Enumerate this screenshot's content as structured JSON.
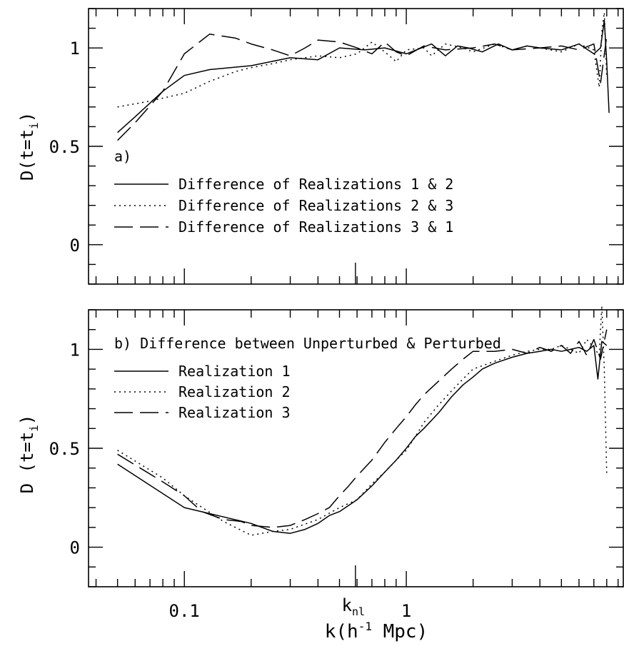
{
  "chart_data": [
    {
      "type": "line",
      "panel_label": "a)",
      "ylabel": "D(t=t",
      "ylabel_sub": "i",
      "ylabel_close": ")",
      "xscale": "log",
      "xlim": [
        0.037,
        9.5
      ],
      "ylim": [
        -0.2,
        1.2
      ],
      "yticks": [
        {
          "v": 0,
          "label": "0"
        },
        {
          "v": 0.5,
          "label": "0.5"
        },
        {
          "v": 1,
          "label": "1"
        }
      ],
      "xticks": [
        {
          "v": 0.1,
          "label": ""
        },
        {
          "v": 1,
          "label": ""
        }
      ],
      "knl_marker": 0.59,
      "series": [
        {
          "name": "Difference of Realizations 1 & 2",
          "style": "solid",
          "x": [
            0.05,
            0.06,
            0.08,
            0.1,
            0.13,
            0.2,
            0.3,
            0.4,
            0.5,
            0.65,
            0.8,
            1.0,
            1.3,
            1.5,
            1.7,
            1.9,
            2.2,
            2.6,
            3.0,
            3.5,
            4.0,
            5.0,
            6.0,
            7.0,
            7.5,
            7.8,
            8.0,
            8.2
          ],
          "y": [
            0.57,
            0.65,
            0.78,
            0.86,
            0.89,
            0.91,
            0.95,
            0.94,
            1.0,
            0.99,
            1.0,
            0.97,
            1.02,
            0.96,
            1.01,
            1.0,
            0.98,
            1.02,
            0.99,
            1.01,
            1.0,
            0.99,
            1.02,
            0.97,
            1.0,
            1.14,
            0.93,
            0.67
          ]
        },
        {
          "name": "Difference of Realizations 2 & 3",
          "style": "dotted",
          "x": [
            0.05,
            0.07,
            0.1,
            0.13,
            0.17,
            0.2,
            0.25,
            0.3,
            0.35,
            0.4,
            0.5,
            0.6,
            0.7,
            0.8,
            0.9,
            1.0,
            1.2,
            1.3,
            1.5,
            1.8,
            2.0,
            2.5,
            3.0,
            3.5,
            4.0,
            5.0,
            6.0,
            7.0,
            7.4,
            7.6,
            7.8,
            8.0
          ],
          "y": [
            0.7,
            0.73,
            0.77,
            0.83,
            0.88,
            0.9,
            0.92,
            0.94,
            0.95,
            0.96,
            0.95,
            0.97,
            1.03,
            0.98,
            0.93,
            0.99,
            1.0,
            0.96,
            1.02,
            1.0,
            0.98,
            1.02,
            0.99,
            1.01,
            1.0,
            0.98,
            1.02,
            0.99,
            0.8,
            1.08,
            1.18,
            0.85
          ]
        },
        {
          "name": "Difference of Realizations 3 & 1",
          "style": "dashed",
          "x": [
            0.05,
            0.06,
            0.08,
            0.1,
            0.13,
            0.17,
            0.2,
            0.25,
            0.3,
            0.35,
            0.4,
            0.5,
            0.6,
            0.7,
            0.8,
            0.9,
            1.0,
            1.2,
            1.5,
            2.0,
            2.5,
            3.0,
            4.0,
            5.0,
            6.0,
            7.0,
            7.5,
            8.0
          ],
          "y": [
            0.53,
            0.62,
            0.78,
            0.97,
            1.07,
            1.05,
            1.02,
            0.99,
            0.96,
            1.0,
            1.04,
            1.03,
            1.0,
            0.97,
            1.03,
            0.98,
            0.96,
            1.01,
            0.99,
            1.0,
            1.02,
            0.99,
            1.0,
            1.01,
            0.99,
            1.02,
            0.82,
            1.06
          ]
        }
      ]
    },
    {
      "type": "line",
      "panel_label": "b) Difference between Unperturbed & Perturbed",
      "ylabel": "D (t=t",
      "ylabel_sub": "i",
      "ylabel_close": ")",
      "xlabel": "k(h",
      "xlabel_sup": "-1",
      "xlabel_rest": " Mpc)",
      "xscale": "log",
      "xlim": [
        0.037,
        9.5
      ],
      "ylim": [
        -0.2,
        1.2
      ],
      "yticks": [
        {
          "v": 0,
          "label": "0"
        },
        {
          "v": 0.5,
          "label": "0.5"
        },
        {
          "v": 1,
          "label": "1"
        }
      ],
      "xticks": [
        {
          "v": 0.1,
          "label": "0.1"
        },
        {
          "v": 1,
          "label": "1"
        }
      ],
      "knl_marker": 0.59,
      "knl_label": "k",
      "knl_sub": "nl",
      "series": [
        {
          "name": "Realization 1",
          "style": "solid",
          "x": [
            0.05,
            0.1,
            0.2,
            0.25,
            0.3,
            0.35,
            0.4,
            0.45,
            0.5,
            0.6,
            0.7,
            0.8,
            0.9,
            1.0,
            1.1,
            1.2,
            1.4,
            1.6,
            1.8,
            2.0,
            2.2,
            2.5,
            3.0,
            3.5,
            4.0,
            4.5,
            5.0,
            5.5,
            6.0,
            6.5,
            7.0,
            7.3,
            7.6,
            8.0
          ],
          "y": [
            0.42,
            0.2,
            0.12,
            0.08,
            0.07,
            0.09,
            0.12,
            0.16,
            0.18,
            0.24,
            0.31,
            0.38,
            0.44,
            0.5,
            0.56,
            0.6,
            0.68,
            0.76,
            0.82,
            0.86,
            0.9,
            0.93,
            0.96,
            0.98,
            0.99,
            1.0,
            0.99,
            1.0,
            1.01,
            0.99,
            1.02,
            0.85,
            1.04,
            1.02
          ]
        },
        {
          "name": "Realization 2",
          "style": "dotted",
          "x": [
            0.05,
            0.08,
            0.1,
            0.15,
            0.2,
            0.25,
            0.3,
            0.4,
            0.5,
            0.6,
            0.7,
            0.8,
            0.9,
            1.0,
            1.1,
            1.2,
            1.4,
            1.6,
            1.8,
            2.0,
            2.5,
            3.0,
            3.5,
            4.0,
            4.5,
            5.0,
            5.5,
            6.0,
            6.5,
            7.0,
            7.4,
            7.6,
            7.8,
            8.0
          ],
          "y": [
            0.49,
            0.35,
            0.26,
            0.13,
            0.06,
            0.08,
            0.09,
            0.14,
            0.2,
            0.24,
            0.32,
            0.38,
            0.44,
            0.49,
            0.56,
            0.63,
            0.72,
            0.79,
            0.85,
            0.9,
            0.94,
            0.97,
            0.99,
            1.0,
            1.0,
            1.02,
            1.0,
            0.98,
            1.05,
            1.01,
            0.97,
            1.22,
            0.9,
            0.37
          ]
        },
        {
          "name": "Realization 3",
          "style": "dashed",
          "x": [
            0.05,
            0.08,
            0.1,
            0.12,
            0.15,
            0.18,
            0.2,
            0.25,
            0.3,
            0.35,
            0.4,
            0.45,
            0.5,
            0.55,
            0.6,
            0.7,
            0.8,
            0.9,
            1.0,
            1.1,
            1.2,
            1.4,
            1.6,
            1.8,
            2.0,
            2.5,
            3.0,
            3.5,
            4.0,
            4.5,
            5.0,
            5.5,
            6.0,
            6.5,
            7.0,
            7.5,
            8.0
          ],
          "y": [
            0.47,
            0.33,
            0.26,
            0.18,
            0.14,
            0.13,
            0.11,
            0.1,
            0.11,
            0.14,
            0.17,
            0.2,
            0.26,
            0.31,
            0.36,
            0.44,
            0.53,
            0.6,
            0.66,
            0.72,
            0.77,
            0.84,
            0.9,
            0.95,
            0.99,
            0.99,
            1.0,
            0.98,
            1.01,
            0.99,
            1.02,
            0.98,
            1.04,
            0.97,
            1.05,
            0.95,
            1.1
          ]
        }
      ]
    }
  ]
}
